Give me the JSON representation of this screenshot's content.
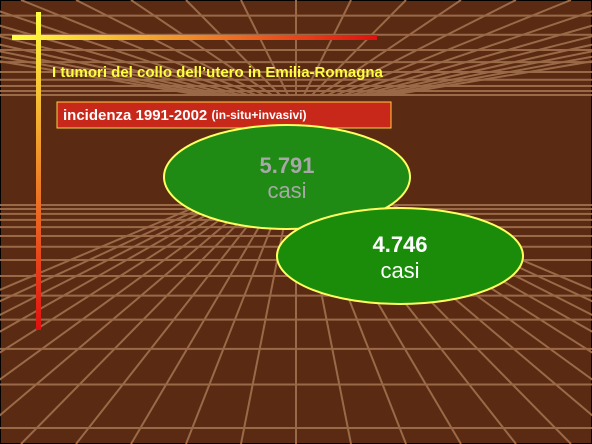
{
  "slide": {
    "title": "I tumori del collo dell’utero in Emilia-Romagna",
    "subtitle": "incidenza 1991-2002",
    "subtitle_note": "(in-situ+invasivi)",
    "bubbles": [
      {
        "value": "5.791",
        "label": "casi"
      },
      {
        "value": "4.746",
        "label": "casi"
      }
    ]
  }
}
